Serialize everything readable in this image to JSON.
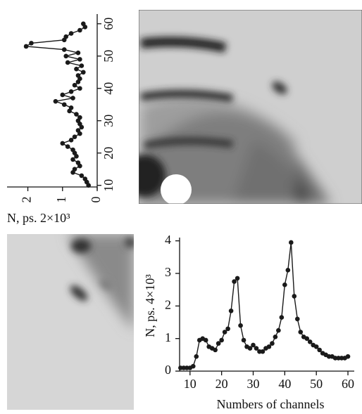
{
  "chart_data": [
    {
      "type": "line",
      "orientation": "rotated",
      "color": "#1a1a1a",
      "grid": false,
      "x_label": "N, ps. 2×10³",
      "x": [
        10,
        11,
        12,
        13,
        14,
        15,
        16,
        17,
        18,
        19,
        20,
        21,
        22,
        23,
        24,
        25,
        26,
        27,
        28,
        29,
        30,
        31,
        32,
        33,
        34,
        35,
        36,
        37,
        38,
        39,
        40,
        41,
        42,
        43,
        44,
        45,
        46,
        47,
        48,
        49,
        50,
        51,
        52,
        53,
        54,
        55,
        56,
        57,
        58,
        59,
        60
      ],
      "values": [
        0.25,
        0.3,
        0.35,
        0.45,
        0.7,
        0.65,
        0.5,
        0.55,
        0.7,
        0.6,
        0.65,
        0.7,
        0.85,
        1.0,
        0.75,
        0.65,
        0.5,
        0.55,
        0.45,
        0.5,
        0.55,
        0.5,
        0.6,
        0.8,
        0.75,
        0.95,
        1.2,
        0.7,
        1.0,
        0.75,
        0.5,
        0.65,
        0.55,
        0.5,
        0.55,
        0.4,
        0.6,
        0.45,
        0.85,
        0.5,
        0.9,
        0.55,
        0.95,
        2.05,
        1.9,
        0.95,
        0.9,
        0.75,
        0.5,
        0.35,
        0.4
      ],
      "xlim": [
        9.5,
        63
      ],
      "xticks": [
        10,
        20,
        30,
        40,
        50,
        60
      ],
      "ylim": [
        2.6,
        0
      ],
      "yticks": [
        2,
        1,
        0
      ]
    },
    {
      "type": "line",
      "orientation": "normal",
      "color": "#1a1a1a",
      "grid": false,
      "x_label": "Numbers of channels",
      "y_label": "N, ps. 4×10³",
      "x": [
        7,
        8,
        9,
        10,
        11,
        12,
        13,
        14,
        15,
        16,
        17,
        18,
        19,
        20,
        21,
        22,
        23,
        24,
        25,
        26,
        27,
        28,
        29,
        30,
        31,
        32,
        33,
        34,
        35,
        36,
        37,
        38,
        39,
        40,
        41,
        42,
        43,
        44,
        45,
        46,
        47,
        48,
        49,
        50,
        51,
        52,
        53,
        54,
        55,
        56,
        57,
        58,
        59,
        60
      ],
      "values": [
        0.1,
        0.1,
        0.1,
        0.1,
        0.15,
        0.45,
        0.95,
        1.0,
        0.95,
        0.75,
        0.7,
        0.65,
        0.85,
        0.95,
        1.2,
        1.3,
        1.85,
        2.75,
        2.85,
        1.4,
        0.95,
        0.75,
        0.7,
        0.8,
        0.7,
        0.6,
        0.6,
        0.7,
        0.75,
        0.85,
        1.05,
        1.25,
        1.65,
        2.65,
        3.1,
        3.95,
        2.3,
        1.6,
        1.2,
        1.05,
        1.0,
        0.9,
        0.8,
        0.75,
        0.65,
        0.55,
        0.5,
        0.45,
        0.45,
        0.4,
        0.4,
        0.4,
        0.4,
        0.45
      ],
      "xlim": [
        6.7,
        62
      ],
      "xticks": [
        10,
        20,
        30,
        40,
        50,
        60
      ],
      "ylim": [
        0,
        4.1
      ],
      "yticks": [
        0,
        1,
        2,
        3,
        4
      ]
    }
  ]
}
